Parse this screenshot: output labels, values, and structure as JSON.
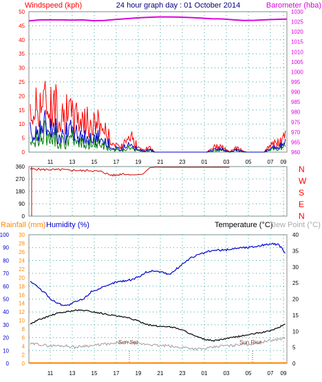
{
  "colors": {
    "wind_speed": "#ff0000",
    "wind_avg": "#0000cc",
    "wind_low": "#008000",
    "barometer": "#dd00dd",
    "direction": "#cc0000",
    "compass_letters": "#ff0000",
    "rainfall": "#ff8800",
    "humidity": "#0000cc",
    "temperature": "#000000",
    "dew_point": "#aaaaaa",
    "rain_axis": "#ff8800",
    "humidity_axis": "#0000cc",
    "grid": "#2aa0a0",
    "header_title": "#000080",
    "dew_label": "#aaaaaa"
  },
  "header": {
    "left": "Windspeed (kph)",
    "center": "24 hour graph day : 01 October 2014",
    "right": "Barometer (hba)"
  },
  "compass": [
    "N",
    "W",
    "S",
    "E",
    "N"
  ],
  "lower_labels": {
    "rainfall": "Rainfall (mm)",
    "humidity": "Humidity (%)",
    "temperature": "Temperature (°C)",
    "dew_point": "Dew Point (°C)",
    "sunset": "Sun Set",
    "sunrise": "Sun Rise"
  },
  "chart_data": [
    {
      "type": "line",
      "x_ticks": [
        "11",
        "13",
        "15",
        "17",
        "19",
        "21",
        "23",
        "01",
        "03",
        "05",
        "07",
        "09"
      ],
      "left_axis": {
        "label": "Windspeed (kph)",
        "ticks": [
          0,
          5,
          10,
          15,
          20,
          25,
          30,
          35,
          40,
          45,
          50
        ],
        "ylim": [
          0,
          50
        ]
      },
      "right_axis": {
        "label": "Barometer (hba)",
        "ticks": [
          960,
          965,
          970,
          975,
          980,
          985,
          990,
          995,
          1000,
          1005,
          1010,
          1015,
          1020,
          1025,
          1030
        ],
        "ylim": [
          960,
          1030
        ]
      },
      "series": [
        {
          "name": "Windspeed (kph)",
          "values": [
            14,
            20,
            24,
            23,
            22,
            20,
            18,
            17,
            17,
            16,
            14,
            12,
            14,
            11,
            7,
            3,
            2,
            8,
            7,
            2,
            1,
            2,
            0,
            0,
            0,
            0,
            0,
            0,
            0,
            0,
            0,
            0,
            2,
            3,
            2,
            0,
            2,
            1,
            0,
            0,
            0,
            0,
            3,
            4,
            5,
            7
          ]
        },
        {
          "name": "Barometer (hba)",
          "values": [
            1025.4,
            1025.9,
            1026.0,
            1025.9,
            1025.8,
            1025.9,
            1025.5,
            1025.6,
            1026.1,
            1026.5,
            1026.9,
            1027.2,
            1027.4,
            1027.4,
            1027.3,
            1027.1,
            1026.8,
            1026.5,
            1026.4,
            1026.0,
            1025.6,
            1025.7,
            1026.0,
            1026.2,
            1026.3
          ]
        }
      ]
    },
    {
      "type": "line",
      "x_ticks": [
        "11",
        "13",
        "15",
        "17",
        "19",
        "21",
        "23",
        "01",
        "03",
        "05",
        "07",
        "09"
      ],
      "axis": {
        "ticks": [
          0,
          90,
          180,
          270,
          360
        ],
        "ylim": [
          0,
          360
        ]
      },
      "series": [
        {
          "values": [
            340,
            342,
            338,
            339,
            336,
            338,
            332,
            334,
            329,
            333,
            326,
            322,
            300,
            296,
            310,
            300,
            300,
            305,
            352,
            356,
            355,
            355,
            355,
            355,
            355,
            355,
            355,
            355,
            355,
            355,
            355
          ]
        }
      ]
    },
    {
      "type": "line",
      "x_ticks": [
        "11",
        "13",
        "15",
        "17",
        "19",
        "21",
        "23",
        "01",
        "03",
        "05",
        "07",
        "09"
      ],
      "axes": {
        "rainfall": {
          "label": "Rainfall (mm)",
          "ticks": [
            0,
            2,
            4,
            6,
            8,
            10,
            12,
            14,
            16,
            18,
            20,
            22,
            24,
            26,
            28,
            30
          ],
          "ylim": [
            0,
            30
          ]
        },
        "humidity": {
          "label": "Humidity (%)",
          "ticks": [
            0,
            10,
            20,
            30,
            40,
            50,
            60,
            70,
            80,
            90,
            100
          ],
          "ylim": [
            0,
            100
          ]
        },
        "temperature": {
          "label": "Temperature (°C)",
          "ticks": [
            0,
            5,
            10,
            15,
            20,
            25,
            30,
            35,
            40
          ],
          "ylim": [
            0,
            40
          ]
        }
      },
      "series": [
        {
          "name": "Humidity (%)",
          "values": [
            65,
            60,
            55,
            49,
            46,
            45,
            48,
            50,
            56,
            58,
            60,
            63,
            64,
            65,
            67,
            71,
            72,
            71,
            69,
            74,
            79,
            83,
            85,
            87,
            88,
            88,
            89,
            90,
            90,
            91,
            92,
            93,
            92,
            84
          ]
        },
        {
          "name": "Temperature (°C)",
          "values": [
            12.0,
            13.5,
            14.5,
            15.5,
            16.0,
            16.5,
            16.5,
            16.0,
            15.5,
            15.0,
            14.5,
            14.0,
            13.0,
            12.0,
            11.5,
            11.5,
            11.0,
            10.0,
            8.5,
            7.5,
            7.0,
            7.5,
            8.0,
            8.5,
            9.0,
            9.5,
            10.0,
            11.0,
            12.5
          ]
        },
        {
          "name": "Dew Point (°C)",
          "values": [
            6.0,
            6.0,
            5.5,
            5.5,
            5.5,
            5.0,
            5.5,
            5.5,
            6.0,
            6.0,
            6.5,
            6.5,
            6.0,
            6.0,
            5.5,
            5.5,
            5.0,
            5.0,
            4.5,
            4.5,
            5.0,
            5.5,
            5.5,
            6.0,
            6.0,
            6.5,
            7.0,
            7.5,
            8.0
          ]
        },
        {
          "name": "Rainfall (mm)",
          "values": [
            0.1,
            0.1,
            0.1,
            0.1,
            0.1,
            0.1,
            0.1,
            0.1,
            0.1,
            0.1,
            0.1,
            0.1
          ]
        }
      ]
    }
  ]
}
